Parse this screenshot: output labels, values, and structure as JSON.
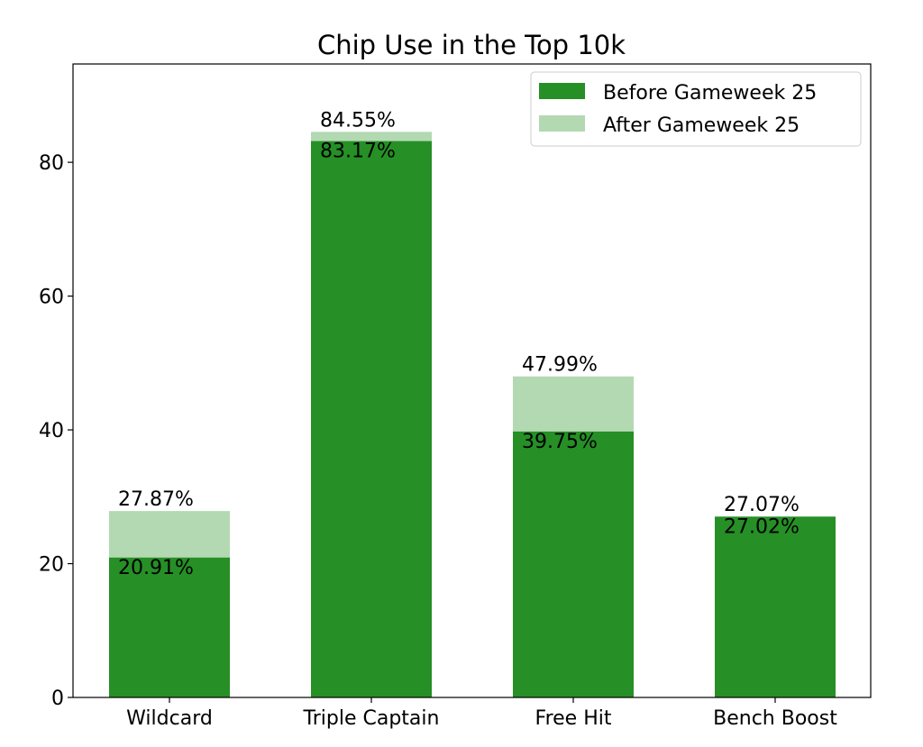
{
  "chart_data": {
    "type": "bar",
    "title": "Chip Use in the Top 10k",
    "xlabel": "",
    "ylabel": "",
    "categories": [
      "Wildcard",
      "Triple Captain",
      "Free Hit",
      "Bench Boost"
    ],
    "series": [
      {
        "name": "Before Gameweek 25",
        "color": "#268f26",
        "values": [
          20.91,
          83.17,
          39.75,
          27.02
        ],
        "labels": [
          "20.91%",
          "83.17%",
          "39.75%",
          "27.02%"
        ]
      },
      {
        "name": "After Gameweek 25",
        "color": "#b3d9b3",
        "values": [
          27.87,
          84.55,
          47.99,
          27.07
        ],
        "labels": [
          "27.87%",
          "84.55%",
          "47.99%",
          "27.07%"
        ]
      }
    ],
    "stacking": "overlay",
    "ylim": [
      0,
      94.7
    ],
    "yticks": [
      0,
      20,
      40,
      60,
      80
    ],
    "ytick_labels": [
      "0",
      "20",
      "40",
      "60",
      "80"
    ],
    "grid": false,
    "legend_position": "top-right"
  }
}
